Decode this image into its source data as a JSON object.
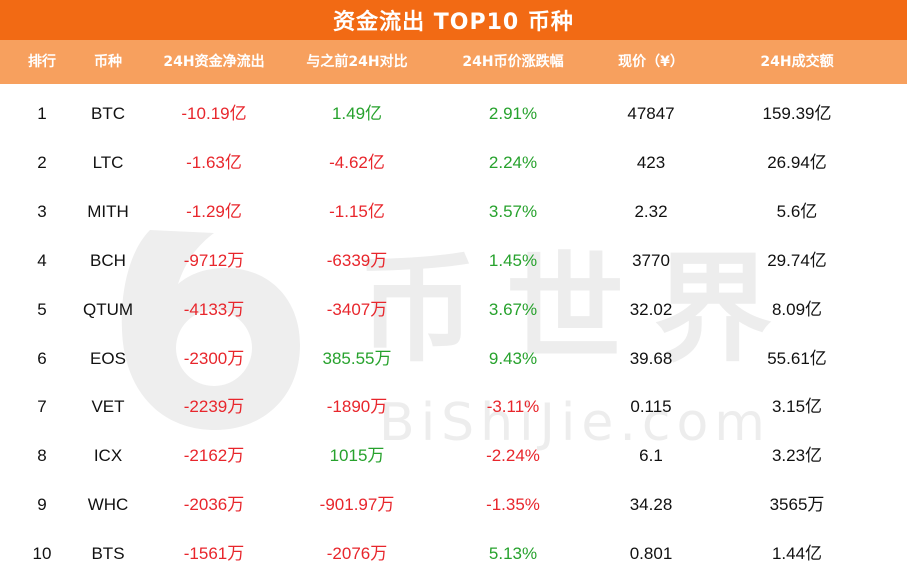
{
  "title": "资金流出 TOP10 币种",
  "headers": [
    "排行",
    "币种",
    "24H资金净流出",
    "与之前24H对比",
    "24H币价涨跌幅",
    "现价（¥）",
    "24H成交额"
  ],
  "rows": [
    {
      "rank": "1",
      "coin": "BTC",
      "outflow": "-10.19亿",
      "compare": "1.49亿",
      "change": "2.91%",
      "price": "47847",
      "volume": "159.39亿"
    },
    {
      "rank": "2",
      "coin": "LTC",
      "outflow": "-1.63亿",
      "compare": "-4.62亿",
      "change": "2.24%",
      "price": "423",
      "volume": "26.94亿"
    },
    {
      "rank": "3",
      "coin": "MITH",
      "outflow": "-1.29亿",
      "compare": "-1.15亿",
      "change": "3.57%",
      "price": "2.32",
      "volume": "5.6亿"
    },
    {
      "rank": "4",
      "coin": "BCH",
      "outflow": "-9712万",
      "compare": "-6339万",
      "change": "1.45%",
      "price": "3770",
      "volume": "29.74亿"
    },
    {
      "rank": "5",
      "coin": "QTUM",
      "outflow": "-4133万",
      "compare": "-3407万",
      "change": "3.67%",
      "price": "32.02",
      "volume": "8.09亿"
    },
    {
      "rank": "6",
      "coin": "EOS",
      "outflow": "-2300万",
      "compare": "385.55万",
      "change": "9.43%",
      "price": "39.68",
      "volume": "55.61亿"
    },
    {
      "rank": "7",
      "coin": "VET",
      "outflow": "-2239万",
      "compare": "-1890万",
      "change": "-3.11%",
      "price": "0.115",
      "volume": "3.15亿"
    },
    {
      "rank": "8",
      "coin": "ICX",
      "outflow": "-2162万",
      "compare": "1015万",
      "change": "-2.24%",
      "price": "6.1",
      "volume": "3.23亿"
    },
    {
      "rank": "9",
      "coin": "WHC",
      "outflow": "-2036万",
      "compare": "-901.97万",
      "change": "-1.35%",
      "price": "34.28",
      "volume": "3565万"
    },
    {
      "rank": "10",
      "coin": "BTS",
      "outflow": "-1561万",
      "compare": "-2076万",
      "change": "5.13%",
      "price": "0.801",
      "volume": "1.44亿"
    }
  ],
  "watermark": {
    "brand_cn": "币世界",
    "brand_en": "BiShiJie.com"
  },
  "colors": {
    "title_bg": "#f26a14",
    "header_bg": "#f7a05e",
    "negative": "#e8262c",
    "positive": "#27a22d"
  }
}
